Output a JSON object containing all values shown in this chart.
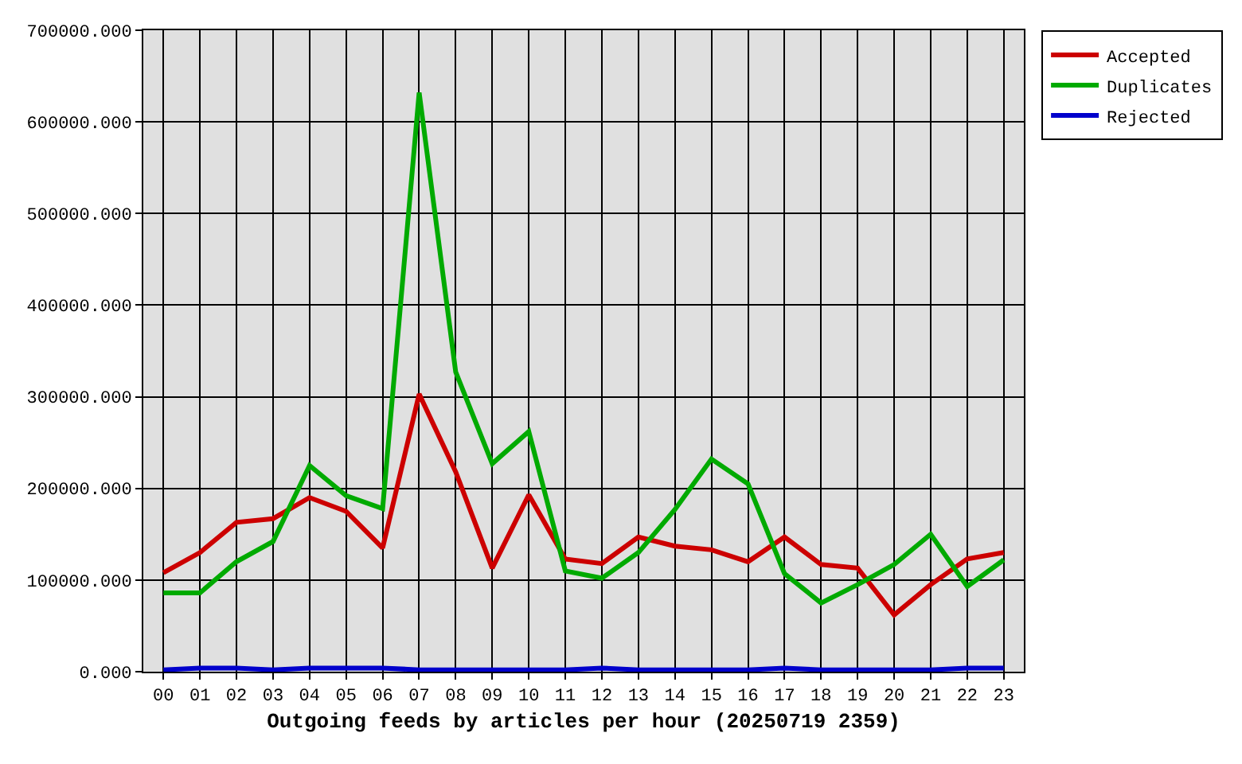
{
  "chart_data": {
    "type": "line",
    "xlabel": "Outgoing feeds by articles per hour (20250719 2359)",
    "categories": [
      "00",
      "01",
      "02",
      "03",
      "04",
      "05",
      "06",
      "07",
      "08",
      "09",
      "10",
      "11",
      "12",
      "13",
      "14",
      "15",
      "16",
      "17",
      "18",
      "19",
      "20",
      "21",
      "22",
      "23"
    ],
    "series": [
      {
        "name": "Accepted",
        "color": "#cc0000",
        "values": [
          108000,
          130000,
          163000,
          167000,
          190000,
          175000,
          135000,
          303000,
          218000,
          113000,
          193000,
          123000,
          118000,
          147000,
          137000,
          133000,
          120000,
          147000,
          117000,
          113000,
          62000,
          95000,
          123000,
          130000
        ]
      },
      {
        "name": "Duplicates",
        "color": "#00aa00",
        "values": [
          86000,
          86000,
          120000,
          142000,
          225000,
          192000,
          178000,
          632000,
          327000,
          227000,
          262000,
          110000,
          102000,
          130000,
          177000,
          232000,
          205000,
          107000,
          75000,
          95000,
          117000,
          150000,
          93000,
          122000
        ]
      },
      {
        "name": "Rejected",
        "color": "#0000cc",
        "values": [
          2000,
          4000,
          4000,
          2000,
          4000,
          4000,
          4000,
          2000,
          2000,
          2000,
          2000,
          2000,
          4000,
          2000,
          2000,
          2000,
          2000,
          4000,
          2000,
          2000,
          2000,
          2000,
          4000,
          4000
        ]
      }
    ],
    "ylim": [
      0,
      700000
    ],
    "yticks": [
      {
        "value": 0,
        "label": "0.000"
      },
      {
        "value": 100000,
        "label": "100000.000"
      },
      {
        "value": 200000,
        "label": "200000.000"
      },
      {
        "value": 300000,
        "label": "300000.000"
      },
      {
        "value": 400000,
        "label": "400000.000"
      },
      {
        "value": 500000,
        "label": "500000.000"
      },
      {
        "value": 600000,
        "label": "600000.000"
      },
      {
        "value": 700000,
        "label": "700000.000"
      }
    ],
    "grid": true,
    "legend": "top right",
    "marker": "none",
    "line_style": "solid"
  }
}
